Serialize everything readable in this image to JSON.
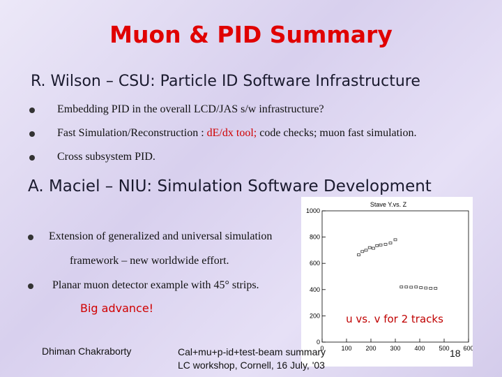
{
  "title": "Muon & PID Summary",
  "section1": {
    "heading": "R. Wilson – CSU:  Particle ID Software Infrastructure",
    "bullets": [
      [
        "Embedding PID in the overall LCD/JAS s/w infrastructure?"
      ],
      [
        "Fast Simulation/Reconstruction : ",
        "dE/dx tool;",
        " code checks; muon fast simulation."
      ],
      [
        "Cross subsystem PID."
      ]
    ]
  },
  "section2": {
    "heading": "A. Maciel – NIU:  Simulation Software Development",
    "bullet1": [
      "Extension of generalized and universal simulation",
      "framework – new worldwide effort."
    ],
    "bullet2": "Planar muon detector example with 45° strips.",
    "note": "Big advance!"
  },
  "plot": {
    "type": "scatter",
    "title": "Stave Y.vs. Z",
    "caption": "u vs. v for 2 tracks",
    "xlim": [
      0,
      600
    ],
    "ylim": [
      0,
      1000
    ],
    "xticks": [
      0,
      100,
      200,
      300,
      400,
      500,
      600
    ],
    "yticks": [
      0,
      200,
      400,
      600,
      800,
      1000
    ],
    "x": [
      150,
      165,
      180,
      195,
      210,
      225,
      240,
      260,
      280,
      300,
      325,
      345,
      365,
      385,
      405,
      425,
      445,
      465
    ],
    "y": [
      665,
      690,
      700,
      720,
      715,
      735,
      740,
      745,
      755,
      780,
      420,
      420,
      418,
      420,
      415,
      412,
      410,
      410
    ],
    "color": "#333333"
  },
  "footer": {
    "author": "Dhiman Chakraborty",
    "event": [
      "Cal+mu+p-id+test-beam summary",
      "LC workshop, Cornell, 16 July, '03"
    ],
    "page": "18"
  }
}
